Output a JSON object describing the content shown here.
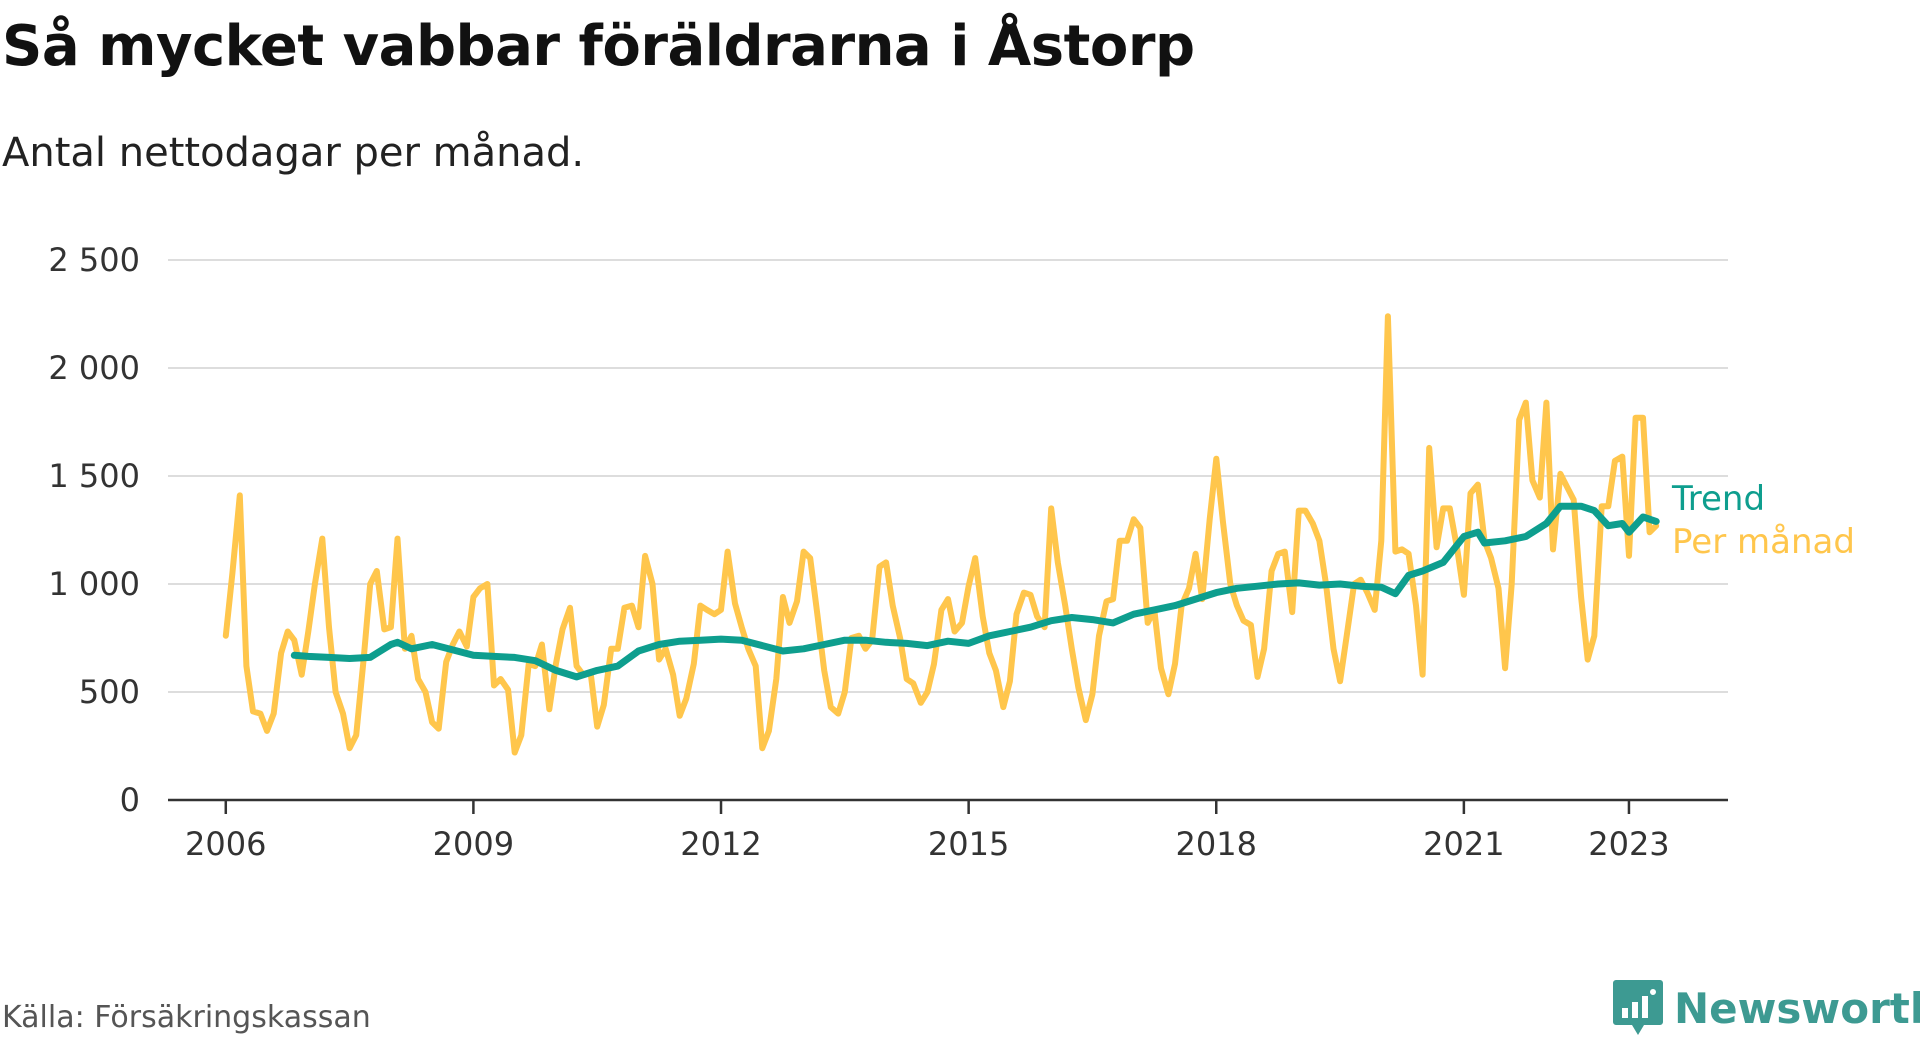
{
  "title": "Så mycket vabbar föräldrarna i Åstorp",
  "subtitle": "Antal nettodagar per månad.",
  "source": "Källa: Försäkringskassan",
  "brand": "Newsworthy",
  "colors": {
    "monthly": "#FFC64C",
    "trend": "#0E9E8E",
    "grid": "#dddddd",
    "axis": "#333333",
    "brand": "#3d9a92"
  },
  "chart_data": {
    "type": "line",
    "y_ticks": [
      "0",
      "500",
      "1 000",
      "1 500",
      "2 000",
      "2 500"
    ],
    "x_ticks": [
      2006,
      2009,
      2012,
      2015,
      2018,
      2021,
      2023
    ],
    "ylim": [
      0,
      2500
    ],
    "xlim": [
      2005.3,
      2024.2
    ],
    "grid": true,
    "legend": "inline-right",
    "series": [
      {
        "name": "Per månad",
        "color": "#FFC64C",
        "x": [
          2006.0,
          2006.08,
          2006.17,
          2006.25,
          2006.33,
          2006.42,
          2006.5,
          2006.58,
          2006.67,
          2006.75,
          2006.83,
          2006.92,
          2007.0,
          2007.08,
          2007.17,
          2007.25,
          2007.33,
          2007.42,
          2007.5,
          2007.58,
          2007.67,
          2007.75,
          2007.83,
          2007.92,
          2008.0,
          2008.08,
          2008.17,
          2008.25,
          2008.33,
          2008.42,
          2008.5,
          2008.58,
          2008.67,
          2008.75,
          2008.83,
          2008.92,
          2009.0,
          2009.08,
          2009.17,
          2009.25,
          2009.33,
          2009.42,
          2009.5,
          2009.58,
          2009.67,
          2009.75,
          2009.83,
          2009.92,
          2010.0,
          2010.08,
          2010.17,
          2010.25,
          2010.33,
          2010.42,
          2010.5,
          2010.58,
          2010.67,
          2010.75,
          2010.83,
          2010.92,
          2011.0,
          2011.08,
          2011.17,
          2011.25,
          2011.33,
          2011.42,
          2011.5,
          2011.58,
          2011.67,
          2011.75,
          2011.83,
          2011.92,
          2012.0,
          2012.08,
          2012.17,
          2012.25,
          2012.33,
          2012.42,
          2012.5,
          2012.58,
          2012.67,
          2012.75,
          2012.83,
          2012.92,
          2013.0,
          2013.08,
          2013.17,
          2013.25,
          2013.33,
          2013.42,
          2013.5,
          2013.58,
          2013.67,
          2013.75,
          2013.83,
          2013.92,
          2014.0,
          2014.08,
          2014.17,
          2014.25,
          2014.33,
          2014.42,
          2014.5,
          2014.58,
          2014.67,
          2014.75,
          2014.83,
          2014.92,
          2015.0,
          2015.08,
          2015.17,
          2015.25,
          2015.33,
          2015.42,
          2015.5,
          2015.58,
          2015.67,
          2015.75,
          2015.83,
          2015.92,
          2016.0,
          2016.08,
          2016.17,
          2016.25,
          2016.33,
          2016.42,
          2016.5,
          2016.58,
          2016.67,
          2016.75,
          2016.83,
          2016.92,
          2017.0,
          2017.08,
          2017.17,
          2017.25,
          2017.33,
          2017.42,
          2017.5,
          2017.58,
          2017.67,
          2017.75,
          2017.83,
          2017.92,
          2018.0,
          2018.08,
          2018.17,
          2018.25,
          2018.33,
          2018.42,
          2018.5,
          2018.58,
          2018.67,
          2018.75,
          2018.83,
          2018.92,
          2019.0,
          2019.08,
          2019.17,
          2019.25,
          2019.33,
          2019.42,
          2019.5,
          2019.58,
          2019.67,
          2019.75,
          2019.83,
          2019.92,
          2020.0,
          2020.08,
          2020.17,
          2020.25,
          2020.33,
          2020.42,
          2020.5,
          2020.58,
          2020.67,
          2020.75,
          2020.83,
          2020.92,
          2021.0,
          2021.08,
          2021.17,
          2021.25,
          2021.33,
          2021.42,
          2021.5,
          2021.58,
          2021.67,
          2021.75,
          2021.83,
          2021.92,
          2022.0,
          2022.08,
          2022.17,
          2022.25,
          2022.33,
          2022.42,
          2022.5,
          2022.58,
          2022.67,
          2022.75,
          2022.83,
          2022.92,
          2023.0,
          2023.08,
          2023.17,
          2023.25,
          2023.33
        ],
        "values": [
          760,
          1050,
          1410,
          620,
          410,
          400,
          320,
          400,
          680,
          780,
          740,
          580,
          780,
          1000,
          1210,
          800,
          500,
          400,
          240,
          300,
          650,
          1000,
          1060,
          790,
          800,
          1210,
          700,
          760,
          560,
          500,
          360,
          330,
          640,
          720,
          780,
          710,
          940,
          980,
          1000,
          530,
          560,
          510,
          220,
          300,
          630,
          620,
          720,
          420,
          630,
          790,
          890,
          620,
          580,
          590,
          340,
          440,
          700,
          700,
          890,
          900,
          800,
          1130,
          1000,
          650,
          700,
          580,
          390,
          470,
          630,
          900,
          880,
          860,
          880,
          1150,
          910,
          800,
          700,
          620,
          240,
          320,
          560,
          940,
          820,
          920,
          1150,
          1120,
          850,
          600,
          430,
          400,
          500,
          750,
          760,
          700,
          740,
          1080,
          1100,
          900,
          750,
          560,
          540,
          450,
          500,
          630,
          880,
          930,
          780,
          820,
          990,
          1120,
          850,
          680,
          600,
          430,
          550,
          860,
          960,
          950,
          850,
          800,
          1350,
          1100,
          900,
          700,
          520,
          370,
          490,
          760,
          920,
          930,
          1200,
          1200,
          1300,
          1260,
          820,
          880,
          610,
          490,
          630,
          900,
          980,
          1140,
          930,
          1300,
          1580,
          1290,
          1000,
          900,
          830,
          810,
          570,
          700,
          1060,
          1140,
          1150,
          870,
          1340,
          1340,
          1280,
          1200,
          1000,
          700,
          550,
          760,
          1000,
          1020,
          960,
          880,
          1200,
          2240,
          1150,
          1160,
          1140,
          900,
          580,
          1630,
          1170,
          1350,
          1350,
          1160,
          950,
          1420,
          1460,
          1200,
          1120,
          980,
          610,
          1000,
          1760,
          1840,
          1480,
          1400,
          1840,
          1160,
          1510,
          1450,
          1390,
          940,
          650,
          760,
          1360,
          1360,
          1570,
          1590,
          1130,
          1770,
          1770,
          1240,
          1270
        ]
      },
      {
        "name": "Trend",
        "color": "#0E9E8E",
        "x": [
          2006.83,
          2007.0,
          2007.25,
          2007.5,
          2007.75,
          2008.0,
          2008.08,
          2008.25,
          2008.5,
          2008.75,
          2009.0,
          2009.25,
          2009.5,
          2009.75,
          2010.0,
          2010.25,
          2010.5,
          2010.75,
          2011.0,
          2011.25,
          2011.5,
          2011.75,
          2012.0,
          2012.25,
          2012.5,
          2012.75,
          2013.0,
          2013.25,
          2013.5,
          2013.75,
          2014.0,
          2014.25,
          2014.5,
          2014.75,
          2015.0,
          2015.25,
          2015.5,
          2015.75,
          2016.0,
          2016.25,
          2016.5,
          2016.75,
          2017.0,
          2017.25,
          2017.5,
          2017.75,
          2018.0,
          2018.25,
          2018.5,
          2018.75,
          2019.0,
          2019.25,
          2019.5,
          2019.75,
          2020.0,
          2020.17,
          2020.33,
          2020.5,
          2020.75,
          2021.0,
          2021.17,
          2021.25,
          2021.5,
          2021.75,
          2022.0,
          2022.17,
          2022.42,
          2022.58,
          2022.75,
          2022.92,
          2023.0,
          2023.17,
          2023.33
        ],
        "values": [
          670,
          665,
          660,
          655,
          660,
          720,
          730,
          700,
          720,
          695,
          670,
          665,
          660,
          645,
          600,
          570,
          600,
          620,
          690,
          720,
          735,
          740,
          745,
          740,
          715,
          690,
          700,
          720,
          740,
          740,
          730,
          725,
          715,
          735,
          725,
          760,
          780,
          800,
          830,
          845,
          835,
          820,
          860,
          880,
          900,
          930,
          960,
          980,
          990,
          1000,
          1005,
          995,
          1000,
          990,
          985,
          955,
          1040,
          1060,
          1100,
          1220,
          1240,
          1190,
          1200,
          1220,
          1280,
          1360,
          1360,
          1340,
          1270,
          1280,
          1240,
          1310,
          1290
        ]
      }
    ]
  }
}
